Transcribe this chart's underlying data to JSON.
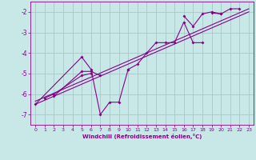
{
  "xlabel": "Windchill (Refroidissement éolien,°C)",
  "background_color": "#c8e8e8",
  "grid_color": "#a8c8c8",
  "line_color": "#880088",
  "label_color": "#880088",
  "x_ticks": [
    0,
    1,
    2,
    3,
    4,
    5,
    6,
    7,
    8,
    9,
    10,
    11,
    12,
    13,
    14,
    15,
    16,
    17,
    18,
    19,
    20,
    21,
    22,
    23
  ],
  "y_ticks": [
    -7,
    -6,
    -5,
    -4,
    -3,
    -2
  ],
  "xlim": [
    -0.5,
    23.5
  ],
  "ylim": [
    -7.5,
    -1.5
  ],
  "series": [
    [
      null,
      -6.2,
      -6.0,
      null,
      null,
      -5.1,
      -5.0,
      null,
      null,
      null,
      null,
      null,
      null,
      null,
      null,
      null,
      null,
      null,
      null,
      null,
      null,
      null,
      null,
      null
    ],
    [
      null,
      null,
      -6.1,
      null,
      null,
      -4.9,
      -4.9,
      -5.1,
      null,
      null,
      null,
      null,
      null,
      null,
      null,
      null,
      null,
      null,
      null,
      null,
      null,
      null,
      null,
      null
    ],
    [
      -6.5,
      null,
      null,
      null,
      null,
      -4.2,
      -4.8,
      -7.0,
      -6.4,
      -6.4,
      -4.8,
      null,
      null,
      null,
      null,
      null,
      null,
      null,
      null,
      null,
      null,
      null,
      null,
      null
    ],
    [
      null,
      null,
      null,
      null,
      null,
      null,
      null,
      null,
      null,
      null,
      -4.8,
      -4.55,
      -4.0,
      -3.5,
      -3.5,
      -3.5,
      -2.5,
      -3.5,
      -3.5,
      null,
      null,
      null,
      null,
      null
    ],
    [
      null,
      null,
      null,
      null,
      null,
      null,
      null,
      null,
      null,
      null,
      null,
      null,
      null,
      null,
      null,
      null,
      -2.2,
      -2.7,
      -2.1,
      -2.0,
      -2.1,
      null,
      null,
      null
    ],
    [
      null,
      null,
      null,
      null,
      null,
      null,
      null,
      null,
      null,
      null,
      null,
      null,
      null,
      null,
      null,
      null,
      null,
      null,
      null,
      -2.05,
      -2.1,
      -1.85,
      -1.85,
      null
    ]
  ],
  "regression_lines": [
    {
      "x": [
        0,
        23
      ],
      "y": [
        -6.35,
        -1.85
      ]
    },
    {
      "x": [
        0,
        23
      ],
      "y": [
        -6.5,
        -2.0
      ]
    }
  ]
}
